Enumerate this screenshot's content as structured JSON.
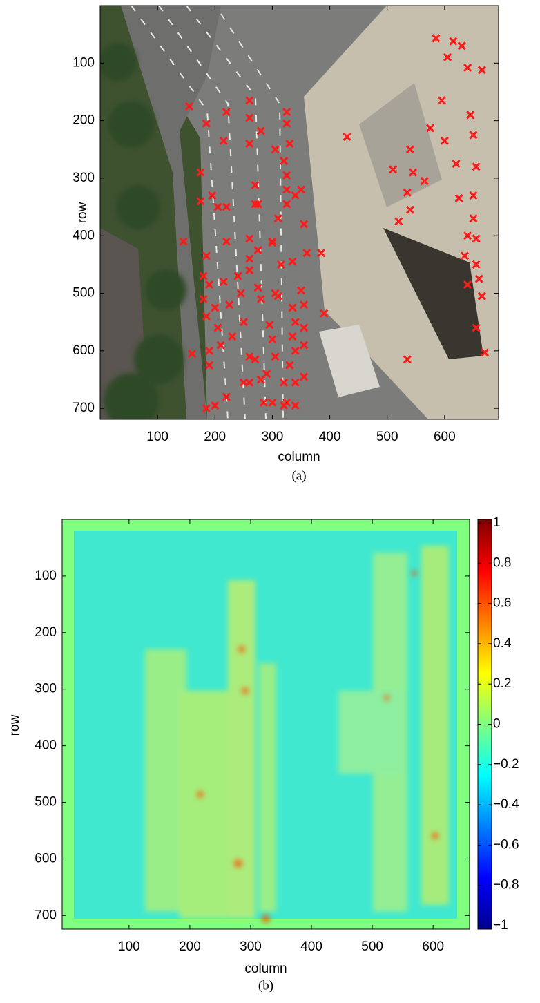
{
  "chart_data": [
    {
      "type": "scatter",
      "caption": "(a)",
      "xlabel": "column",
      "ylabel": "row",
      "marker": "x",
      "color": "#ff1a1a",
      "y_inverted": true,
      "xlim": [
        0,
        694
      ],
      "ylim": [
        0,
        719
      ],
      "xticks": [
        100,
        200,
        300,
        400,
        500,
        600
      ],
      "yticks": [
        100,
        200,
        300,
        400,
        500,
        600,
        700
      ],
      "x": [
        585,
        615,
        630,
        605,
        640,
        665,
        595,
        645,
        600,
        575,
        650,
        620,
        655,
        540,
        545,
        565,
        625,
        650,
        535,
        540,
        650,
        640,
        655,
        635,
        655,
        660,
        640,
        665,
        655,
        670,
        520,
        510,
        430,
        535,
        325,
        325,
        330,
        305,
        320,
        325,
        325,
        325,
        340,
        350,
        355,
        360,
        335,
        310,
        300,
        315,
        310,
        275,
        280,
        295,
        300,
        305,
        320,
        325,
        340,
        355,
        340,
        335,
        340,
        355,
        335,
        355,
        350,
        355,
        340,
        320,
        285,
        270,
        290,
        280,
        270,
        270,
        300,
        385,
        390,
        300,
        305,
        330,
        155,
        185,
        215,
        220,
        260,
        260,
        260,
        280,
        175,
        195,
        175,
        205,
        220,
        220,
        185,
        145,
        180,
        190,
        180,
        200,
        225,
        215,
        240,
        245,
        260,
        260,
        260,
        185,
        205,
        210,
        230,
        250,
        160,
        190,
        190,
        260,
        250,
        260,
        220,
        200,
        185,
        275,
        275
      ],
      "values": [
        57,
        62,
        70,
        90,
        108,
        112,
        165,
        190,
        235,
        213,
        225,
        275,
        280,
        250,
        290,
        305,
        335,
        330,
        325,
        355,
        370,
        400,
        405,
        435,
        450,
        475,
        485,
        505,
        560,
        603,
        375,
        285,
        228,
        615,
        185,
        205,
        240,
        250,
        270,
        295,
        320,
        345,
        330,
        320,
        380,
        430,
        445,
        370,
        410,
        450,
        505,
        490,
        510,
        555,
        580,
        610,
        655,
        690,
        655,
        645,
        600,
        575,
        550,
        560,
        525,
        520,
        495,
        590,
        695,
        695,
        690,
        615,
        640,
        650,
        312,
        345,
        690,
        430,
        535,
        412,
        500,
        625,
        175,
        205,
        235,
        185,
        165,
        195,
        240,
        218,
        290,
        330,
        340,
        350,
        350,
        410,
        435,
        410,
        470,
        485,
        510,
        525,
        520,
        480,
        470,
        500,
        405,
        440,
        460,
        540,
        560,
        590,
        575,
        550,
        605,
        600,
        625,
        610,
        655,
        655,
        680,
        695,
        700,
        425,
        345
      ]
    },
    {
      "type": "heatmap",
      "caption": "(b)",
      "xlabel": "column",
      "ylabel": "row",
      "colormap": "jet",
      "y_inverted": true,
      "xlim": [
        -10,
        660
      ],
      "ylim": [
        0,
        724
      ],
      "xticks": [
        100,
        200,
        300,
        400,
        500,
        600
      ],
      "yticks": [
        100,
        200,
        300,
        400,
        500,
        600,
        700
      ],
      "clim": [
        -1,
        1
      ],
      "cticks": [
        1,
        0.8,
        0.6,
        0.4,
        0.2,
        0,
        {
          "value": -0.2,
          "label": "−0.2"
        },
        {
          "value": -0.4,
          "label": "−0.4"
        },
        {
          "value": -0.6,
          "label": "−0.6"
        },
        {
          "value": -0.8,
          "label": "−0.8"
        },
        {
          "value": -1,
          "label": "−1"
        }
      ]
    }
  ]
}
